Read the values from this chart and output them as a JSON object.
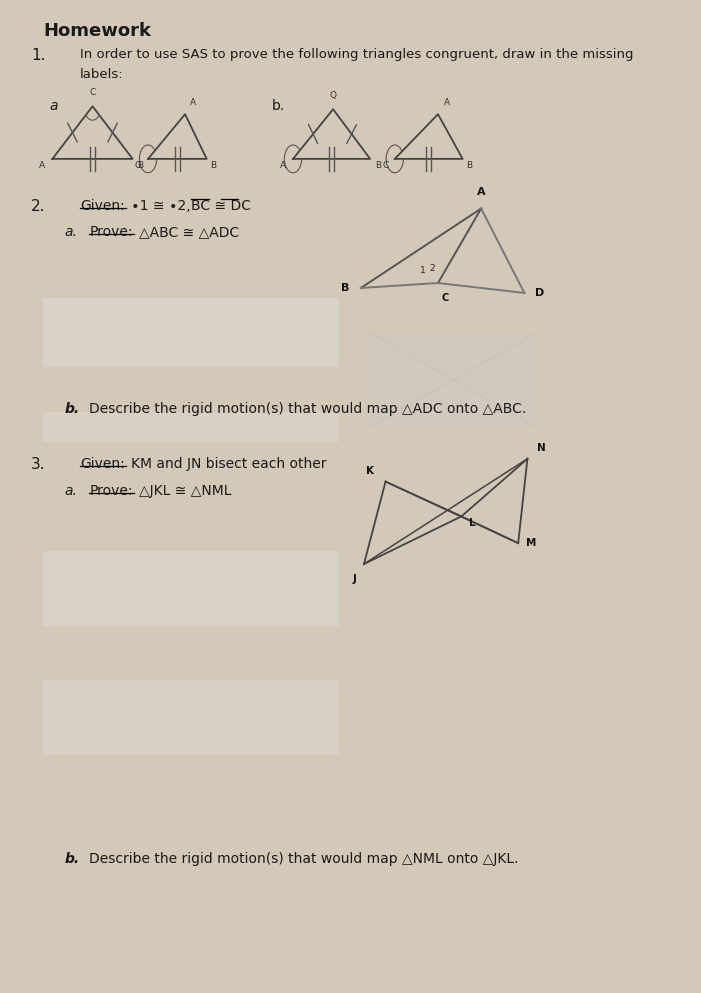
{
  "title": "Homework",
  "bg_color": "#d4c8b8",
  "paper_color": "#f2f0ee",
  "wood_color": "#c8a878",
  "text_color": "#1a1a1a",
  "q1_text_line1": "In order to use SAS to prove the following triangles congruent, draw in the missing",
  "q1_text_line2": "labels:",
  "q1_label_a": "a",
  "q1_label_b": "b.",
  "q2b_text": "Describe the rigid motion(s) that would map △ADC onto △ABC.",
  "q3_given_text": "KM and JN bisect each other",
  "q3b_text": "Describe the rigid motion(s) that would map △NML onto △JKL.",
  "num1": "1.",
  "num2": "2.",
  "num3": "3."
}
